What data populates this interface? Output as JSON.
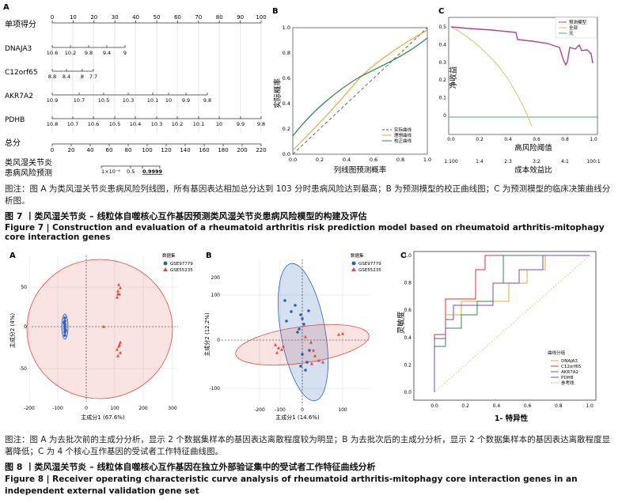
{
  "fig7": {
    "nomogram": {
      "panel": "A",
      "points_label": "单项得分",
      "points_ticks": [
        "0",
        "10",
        "20",
        "30",
        "40",
        "50",
        "60",
        "70",
        "80",
        "90",
        "100"
      ],
      "genes": [
        {
          "name": "DNAJA3",
          "ticks": [
            "10.6",
            "10.2",
            "9.8",
            "9.4",
            "9"
          ]
        },
        {
          "name": "C12orf65",
          "ticks": [
            "8.8",
            "8.4",
            "8",
            "7.7"
          ]
        },
        {
          "name": "AKR7A2",
          "ticks": [
            "10.9",
            "10.7",
            "10.5",
            "10.3",
            "10.1",
            "10",
            "9.9",
            "9.8"
          ]
        },
        {
          "name": "PDHB",
          "ticks": [
            "10.8",
            "10.7",
            "10.6",
            "10.5",
            "10.4",
            "10.3",
            "10.2",
            "10.1",
            "10",
            "9.9",
            "9.8"
          ]
        }
      ],
      "total_label": "总分",
      "total_ticks": [
        "0",
        "20",
        "40",
        "60",
        "80",
        "100",
        "120",
        "140",
        "160",
        "180",
        "200",
        "220"
      ],
      "risk_label_1": "类风湿关节炎",
      "risk_label_2": "患病风险预测",
      "risk_ticks": [
        "1×10⁻⁶",
        "0.5",
        "0.9999"
      ]
    },
    "calibration": {
      "panel": "B",
      "ylabel": "实际概率",
      "xlabel": "列线图预测概率",
      "ticks": [
        "0.0",
        "0.2",
        "0.4",
        "0.6",
        "0.8",
        "1.0"
      ],
      "legend": [
        "实际曲线",
        "理想曲线",
        "校正曲线"
      ]
    },
    "dca": {
      "panel": "C",
      "ylabel": "净收益",
      "xlabel1": "高风险阈值",
      "xlabel2": "成本效益比",
      "xticks": [
        "0.0",
        "0.2",
        "0.4",
        "0.6",
        "0.8",
        "1.0"
      ],
      "yticks": [
        "0.5",
        "0.4",
        "0.3",
        "0.2",
        "0.1",
        "0"
      ],
      "ratio_ticks": [
        "1:100",
        "1:4",
        "2:3",
        "3:2",
        "4:1",
        "100:1"
      ],
      "legend": [
        "预测模型",
        "全部",
        "无"
      ]
    },
    "note": "图注：图 A 为类风湿关节炎患病风险列线图，所有基因表达相加总分达到 103 分时患病风险达到最高；B 为预测模型的校正曲线图；C 为预测模型的临床决策曲线分析图。",
    "title_cn": "图 7 丨类风湿关节炎 – 线粒体自噬核心互作基因预测类风湿关节炎患病风险模型的构建及评估",
    "title_en": "Figure 7  |  Construction and evaluation of a rheumatoid arthritis risk prediction model based on rheumatoid arthritis-mitophagy core interaction genes"
  },
  "fig8": {
    "pca_a": {
      "panel": "A",
      "xlabel": "主成分1 (67.6%)",
      "ylabel": "主成分2 (4%)",
      "xticks": [
        "-200",
        "-100",
        "0",
        "100",
        "200",
        "300"
      ],
      "yticks": [
        "50",
        "0",
        "-50"
      ],
      "legend_title": "数据集",
      "legend": [
        "GSE97779",
        "GSE55235"
      ]
    },
    "pca_b": {
      "panel": "B",
      "xlabel": "主成分1 (14.6%)",
      "ylabel": "主成分2 (12.2%)",
      "xticks": [
        "-200",
        "-100",
        "0",
        "100"
      ],
      "yticks": [
        "200",
        "100",
        "0",
        "-100"
      ],
      "legend_title": "数据集",
      "legend": [
        "GSE97779",
        "GSE55235"
      ]
    },
    "roc": {
      "panel": "C",
      "ylabel": "灵敏度",
      "xlabel": "1- 特异性",
      "ticks": [
        "0.0",
        "0.2",
        "0.4",
        "0.6",
        "0.8",
        "1.0"
      ],
      "legend_title": "曲线分组",
      "legend": [
        "DNAJA3",
        "C12orf65",
        "AKR7A2",
        "PDHB",
        "参考线"
      ]
    },
    "note": "图注：图 A 为去批次前的主成分分析，显示 2 个数据集样本的基因表达离散程度较为明显；B 为去批次后的主成分分析，显示 2 个数据集样本的基因表达离散程度显著降低；C 为 4 个核心互作基因的受试者工作特征曲线图。",
    "title_cn": "图 8 丨类风湿关节炎 – 线粒体自噬核心互作基因在独立外部验证集中的受试者工作特征曲线分析",
    "title_en": "Figure 8  |  Receiver operating characteristic curve analysis of rheumatoid arthritis-mitophagy core interaction genes in an independent external validation gene set"
  },
  "colors": {
    "gse97779": "#2b62b8",
    "gse55235": "#e0473f",
    "model": "#b0429b",
    "all": "#d9c06a",
    "none": "#4caa6a",
    "ideal": "#e5a533",
    "actual": "#2d8a4c"
  }
}
